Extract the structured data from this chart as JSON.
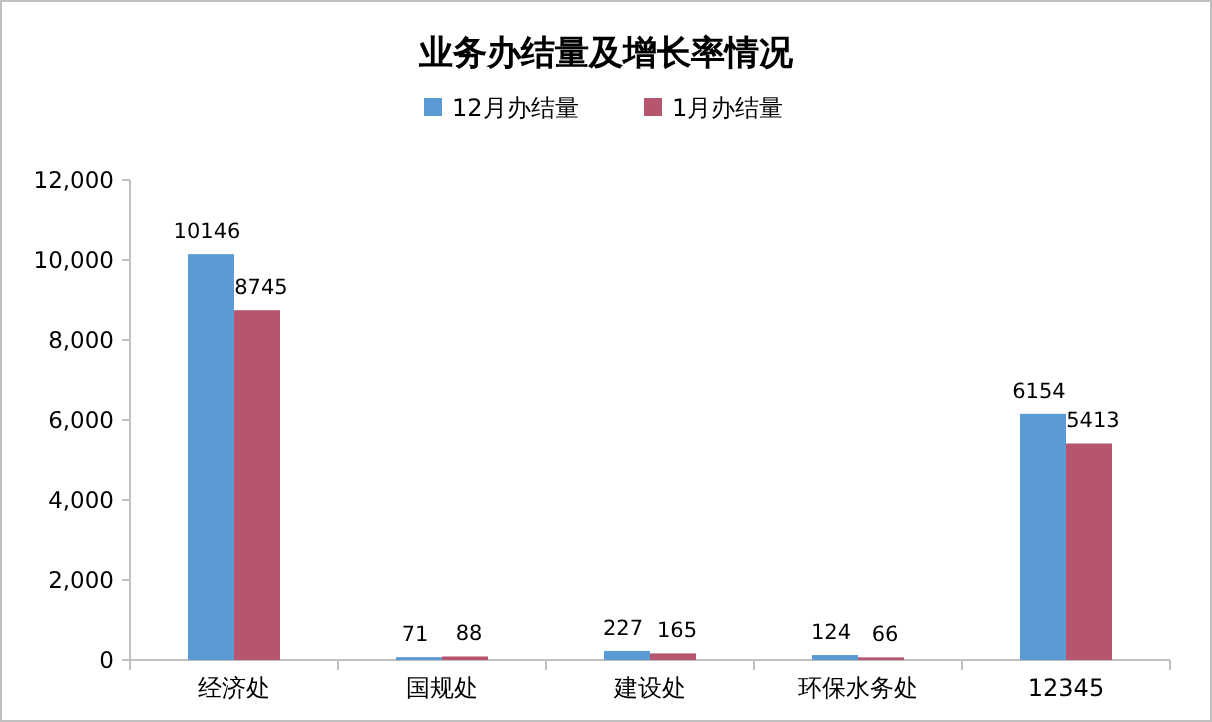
{
  "chart_data": {
    "type": "bar",
    "title": "业务办结量及增长率情况",
    "categories": [
      "经济处",
      "国规处",
      "建设处",
      "环保水务处",
      "12345"
    ],
    "series": [
      {
        "name": "12月办结量",
        "color": "#5b9bd5",
        "values": [
          10146,
          71,
          227,
          124,
          6154
        ]
      },
      {
        "name": "1月办结量",
        "color": "#b5566e",
        "values": [
          8745,
          88,
          165,
          66,
          5413
        ]
      }
    ],
    "ylim": [
      0,
      12000
    ],
    "yticks": [
      0,
      {
        "value": 2000,
        "label": "2,000"
      },
      {
        "value": 4000,
        "label": "4,000"
      },
      {
        "value": 6000,
        "label": "6,000"
      },
      {
        "value": 8000,
        "label": "8,000"
      },
      {
        "value": 10000,
        "label": "10,000"
      },
      {
        "value": 12000,
        "label": "12,000"
      }
    ],
    "data_labels": true,
    "legend": "top"
  }
}
